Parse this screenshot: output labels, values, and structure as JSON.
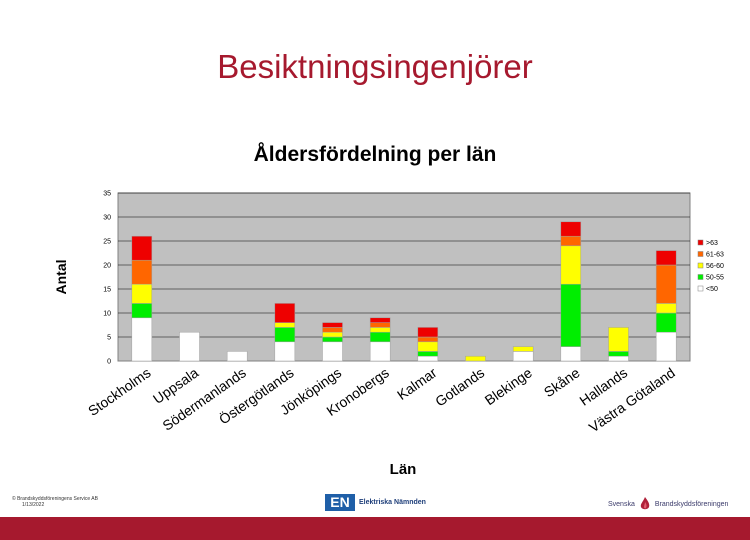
{
  "slide": {
    "title": "Besiktningsingenjörer"
  },
  "footer": {
    "copyright": "© Brandskyddsföreningens Service AB",
    "date": "1/13/2022",
    "logo_en_mark": "EN",
    "logo_en_text": "Elektriska Nämnden",
    "logo_sbf_left": "Svenska",
    "logo_sbf_right": "Brandskyddsföreningen"
  },
  "chart_data": {
    "type": "bar",
    "stacked": true,
    "title": "Åldersfördelning per län",
    "xlabel": "Län",
    "ylabel": "Antal",
    "ylim": [
      0,
      35
    ],
    "yticks": [
      0,
      5,
      10,
      15,
      20,
      25,
      30,
      35
    ],
    "grid": true,
    "legend": "right",
    "categories": [
      "Stockholms",
      "Uppsala",
      "Södermanlands",
      "Östergötlands",
      "Jönköpings",
      "Kronobergs",
      "Kalmar",
      "Gotlands",
      "Blekinge",
      "Skåne",
      "Hallands",
      "Västra Götaland"
    ],
    "series": [
      {
        "name": "<50",
        "color": "#ffffff",
        "values": [
          9,
          6,
          2,
          4,
          4,
          4,
          1,
          0,
          2,
          3,
          1,
          6
        ]
      },
      {
        "name": "50-55",
        "color": "#00ee00",
        "values": [
          3,
          0,
          0,
          3,
          1,
          2,
          1,
          0,
          0,
          13,
          1,
          4
        ]
      },
      {
        "name": "56-60",
        "color": "#ffff00",
        "values": [
          4,
          0,
          0,
          1,
          1,
          1,
          2,
          1,
          1,
          8,
          5,
          2
        ]
      },
      {
        "name": "61-63",
        "color": "#ff6600",
        "values": [
          5,
          0,
          0,
          0,
          1,
          1,
          1,
          0,
          0,
          2,
          0,
          8
        ]
      },
      {
        "name": ">63",
        "color": "#ee0000",
        "values": [
          5,
          0,
          0,
          4,
          1,
          1,
          2,
          0,
          0,
          3,
          0,
          3
        ]
      }
    ],
    "plot_bg": "#c0c0c0"
  }
}
